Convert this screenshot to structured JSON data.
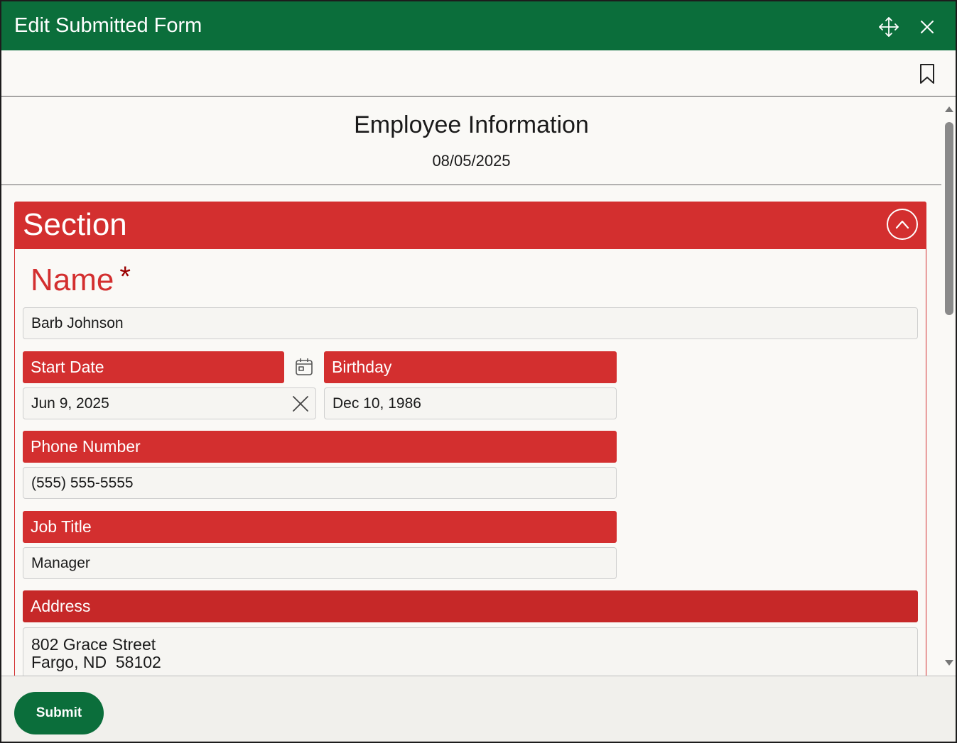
{
  "window": {
    "title": "Edit Submitted Form",
    "move_icon": "move-arrows-icon",
    "close_icon": "close-icon"
  },
  "toolbar": {
    "bookmark_icon": "bookmark-icon"
  },
  "form": {
    "title": "Employee Information",
    "date": "08/05/2025"
  },
  "section": {
    "title": "Section",
    "collapse_icon": "chevron-up-icon"
  },
  "fields": {
    "name": {
      "label": "Name",
      "required_mark": "*",
      "value": "Barb Johnson"
    },
    "start_date": {
      "label": "Start Date",
      "value": "Jun 9, 2025",
      "calendar_icon": "calendar-icon",
      "clear_icon": "clear-icon"
    },
    "birthday": {
      "label": "Birthday",
      "value": "Dec 10, 1986"
    },
    "phone": {
      "label": "Phone Number",
      "value": "(555) 555-5555"
    },
    "job_title": {
      "label": "Job Title",
      "value": "Manager"
    },
    "address": {
      "label": "Address",
      "line1": "802 Grace Street",
      "line2": "Fargo, ND  58102"
    }
  },
  "footer": {
    "submit_label": "Submit"
  },
  "colors": {
    "title_bar": "#0b6e3b",
    "section_accent": "#d32f2f",
    "submit_button": "#0b6e3b"
  }
}
